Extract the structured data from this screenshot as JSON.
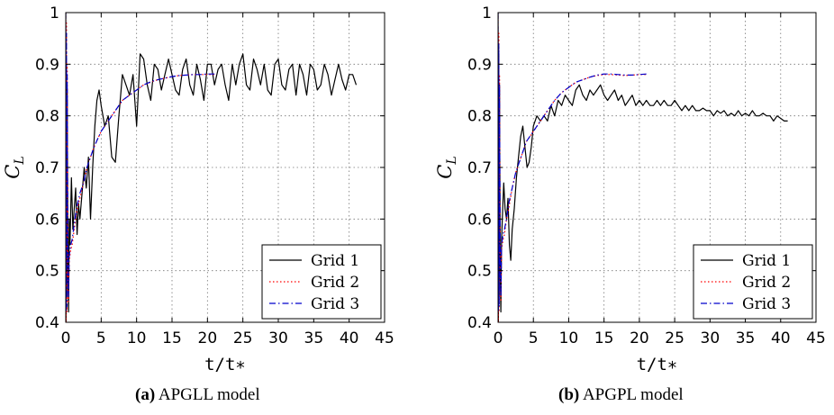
{
  "chart_data": [
    {
      "type": "line",
      "ylabel_main": "C",
      "ylabel_sub": "L",
      "xlabel": "t/t∗",
      "xlim": [
        0,
        45
      ],
      "ylim": [
        0.4,
        1.0
      ],
      "xticks": [
        0,
        5,
        10,
        15,
        20,
        25,
        30,
        35,
        40,
        45
      ],
      "yticks": [
        0.4,
        0.5,
        0.6,
        0.7,
        0.8,
        0.9,
        1.0
      ],
      "ytick_labels": [
        "0.4",
        "0.5",
        "0.6",
        "0.7",
        "0.8",
        "0.9",
        "1"
      ],
      "grid": true,
      "legend": "bottom-right",
      "caption_tag": "(a)",
      "caption_text": "APGLL model",
      "series": [
        {
          "name": "Grid 1",
          "color": "#000000",
          "style": "solid",
          "x": [
            0,
            0.05,
            0.1,
            0.15,
            0.2,
            0.3,
            0.4,
            0.5,
            0.6,
            0.8,
            1.0,
            1.2,
            1.4,
            1.6,
            1.8,
            2.0,
            2.3,
            2.6,
            2.9,
            3.2,
            3.5,
            3.8,
            4.1,
            4.4,
            4.7,
            5.0,
            5.5,
            6.0,
            6.5,
            7.0,
            7.5,
            8.0,
            8.5,
            9.0,
            9.5,
            10.0,
            10.5,
            11.0,
            11.5,
            12.0,
            12.5,
            13.0,
            13.5,
            14.0,
            14.5,
            15.0,
            15.5,
            16.0,
            16.5,
            17.0,
            17.5,
            18.0,
            18.5,
            19.0,
            19.5,
            20.0,
            20.5,
            21.0,
            21.5,
            22.0,
            22.5,
            23.0,
            23.5,
            24.0,
            24.5,
            25.0,
            25.5,
            26.0,
            26.5,
            27.0,
            27.5,
            28.0,
            28.5,
            29.0,
            29.5,
            30.0,
            30.5,
            31.0,
            31.5,
            32.0,
            32.5,
            33.0,
            33.5,
            34.0,
            34.5,
            35.0,
            35.5,
            36.0,
            36.5,
            37.0,
            37.5,
            38.0,
            38.5,
            39.0,
            39.5,
            40.0,
            40.5,
            41.0
          ],
          "y": [
            1.0,
            0.4,
            0.9,
            0.45,
            0.85,
            0.5,
            0.42,
            0.6,
            0.55,
            0.68,
            0.58,
            0.62,
            0.66,
            0.57,
            0.63,
            0.6,
            0.65,
            0.7,
            0.66,
            0.72,
            0.6,
            0.7,
            0.78,
            0.83,
            0.85,
            0.82,
            0.78,
            0.8,
            0.72,
            0.71,
            0.8,
            0.88,
            0.86,
            0.84,
            0.88,
            0.78,
            0.92,
            0.91,
            0.86,
            0.83,
            0.9,
            0.89,
            0.85,
            0.88,
            0.91,
            0.88,
            0.85,
            0.84,
            0.89,
            0.91,
            0.86,
            0.84,
            0.9,
            0.87,
            0.83,
            0.9,
            0.9,
            0.86,
            0.89,
            0.9,
            0.86,
            0.83,
            0.9,
            0.86,
            0.9,
            0.92,
            0.86,
            0.85,
            0.91,
            0.89,
            0.86,
            0.9,
            0.85,
            0.84,
            0.9,
            0.91,
            0.86,
            0.85,
            0.89,
            0.9,
            0.84,
            0.9,
            0.88,
            0.84,
            0.9,
            0.89,
            0.85,
            0.86,
            0.9,
            0.88,
            0.84,
            0.87,
            0.9,
            0.87,
            0.85,
            0.88,
            0.88,
            0.86
          ]
        },
        {
          "name": "Grid 2",
          "color": "#ff0000",
          "style": "dotted",
          "x": [
            0,
            0.05,
            0.1,
            0.15,
            0.2,
            0.3,
            0.4,
            0.5,
            0.7,
            0.9,
            1.2,
            1.5,
            2.0,
            2.5,
            3.0,
            3.5,
            4.0,
            5.0,
            6.0,
            7.0,
            8.0,
            9.0,
            10.0,
            11.0,
            12.0,
            13.0,
            14.0,
            15.0,
            16.0,
            17.0,
            18.0,
            19.0,
            20.0,
            21.0
          ],
          "y": [
            1.0,
            0.4,
            0.98,
            0.42,
            0.9,
            0.5,
            0.44,
            0.52,
            0.54,
            0.55,
            0.58,
            0.61,
            0.64,
            0.67,
            0.7,
            0.72,
            0.74,
            0.77,
            0.79,
            0.81,
            0.83,
            0.84,
            0.85,
            0.86,
            0.865,
            0.87,
            0.873,
            0.876,
            0.878,
            0.879,
            0.88,
            0.88,
            0.88,
            0.88
          ]
        },
        {
          "name": "Grid 3",
          "color": "#0000cc",
          "style": "dashdot",
          "x": [
            0,
            0.05,
            0.1,
            0.15,
            0.2,
            0.3,
            0.4,
            0.5,
            0.7,
            0.9,
            1.2,
            1.5,
            2.0,
            2.5,
            3.0,
            3.5,
            4.0,
            5.0,
            6.0,
            7.0,
            8.0,
            9.0,
            10.0,
            11.0,
            12.0,
            13.0,
            14.0,
            15.0,
            16.0,
            17.0,
            18.0,
            19.0,
            20.0,
            21.0
          ],
          "y": [
            1.0,
            0.42,
            0.96,
            0.43,
            0.88,
            0.52,
            0.45,
            0.53,
            0.55,
            0.56,
            0.59,
            0.62,
            0.65,
            0.67,
            0.7,
            0.72,
            0.74,
            0.77,
            0.79,
            0.81,
            0.83,
            0.84,
            0.85,
            0.86,
            0.866,
            0.87,
            0.873,
            0.876,
            0.878,
            0.879,
            0.88,
            0.88,
            0.881,
            0.881
          ]
        }
      ]
    },
    {
      "type": "line",
      "ylabel_main": "C",
      "ylabel_sub": "L",
      "xlabel": "t/t∗",
      "xlim": [
        0,
        45
      ],
      "ylim": [
        0.4,
        1.0
      ],
      "xticks": [
        0,
        5,
        10,
        15,
        20,
        25,
        30,
        35,
        40,
        45
      ],
      "yticks": [
        0.4,
        0.5,
        0.6,
        0.7,
        0.8,
        0.9,
        1.0
      ],
      "ytick_labels": [
        "0.4",
        "0.5",
        "0.6",
        "0.7",
        "0.8",
        "0.9",
        "1"
      ],
      "grid": true,
      "legend": "bottom-right",
      "caption_tag": "(b)",
      "caption_text": "APGPL model",
      "series": [
        {
          "name": "Grid 1",
          "color": "#000000",
          "style": "solid",
          "x": [
            0,
            0.05,
            0.1,
            0.15,
            0.2,
            0.3,
            0.4,
            0.5,
            0.6,
            0.8,
            1.0,
            1.2,
            1.4,
            1.6,
            1.8,
            2.0,
            2.3,
            2.6,
            2.9,
            3.2,
            3.5,
            3.8,
            4.1,
            4.4,
            4.7,
            5.0,
            5.5,
            6.0,
            6.5,
            7.0,
            7.5,
            8.0,
            8.5,
            9.0,
            9.5,
            10.0,
            10.5,
            11.0,
            11.5,
            12.0,
            12.5,
            13.0,
            13.5,
            14.0,
            14.5,
            15.0,
            15.5,
            16.0,
            16.5,
            17.0,
            17.5,
            18.0,
            18.5,
            19.0,
            19.5,
            20.0,
            20.5,
            21.0,
            21.5,
            22.0,
            22.5,
            23.0,
            23.5,
            24.0,
            24.5,
            25.0,
            25.5,
            26.0,
            26.5,
            27.0,
            27.5,
            28.0,
            28.5,
            29.0,
            29.5,
            30.0,
            30.5,
            31.0,
            31.5,
            32.0,
            32.5,
            33.0,
            33.5,
            34.0,
            34.5,
            35.0,
            35.5,
            36.0,
            36.5,
            37.0,
            37.5,
            38.0,
            38.5,
            39.0,
            39.5,
            40.0,
            40.5,
            41.0
          ],
          "y": [
            1.0,
            0.4,
            0.92,
            0.45,
            0.86,
            0.5,
            0.42,
            0.56,
            0.6,
            0.67,
            0.62,
            0.6,
            0.64,
            0.55,
            0.52,
            0.58,
            0.62,
            0.68,
            0.72,
            0.76,
            0.78,
            0.74,
            0.7,
            0.71,
            0.74,
            0.78,
            0.8,
            0.79,
            0.8,
            0.79,
            0.82,
            0.8,
            0.83,
            0.82,
            0.84,
            0.83,
            0.82,
            0.85,
            0.86,
            0.84,
            0.83,
            0.85,
            0.84,
            0.85,
            0.86,
            0.84,
            0.83,
            0.84,
            0.85,
            0.83,
            0.84,
            0.82,
            0.83,
            0.84,
            0.82,
            0.83,
            0.82,
            0.83,
            0.82,
            0.82,
            0.83,
            0.82,
            0.83,
            0.82,
            0.82,
            0.83,
            0.82,
            0.81,
            0.82,
            0.81,
            0.82,
            0.81,
            0.81,
            0.815,
            0.81,
            0.81,
            0.8,
            0.81,
            0.805,
            0.81,
            0.8,
            0.805,
            0.8,
            0.81,
            0.8,
            0.805,
            0.8,
            0.81,
            0.8,
            0.8,
            0.805,
            0.8,
            0.8,
            0.79,
            0.8,
            0.795,
            0.79,
            0.79
          ]
        },
        {
          "name": "Grid 2",
          "color": "#ff0000",
          "style": "dotted",
          "x": [
            0,
            0.05,
            0.1,
            0.15,
            0.2,
            0.3,
            0.4,
            0.5,
            0.7,
            0.9,
            1.2,
            1.5,
            2.0,
            2.5,
            3.0,
            3.5,
            4.0,
            5.0,
            6.0,
            7.0,
            8.0,
            9.0,
            10.0,
            11.0,
            12.0,
            13.0,
            14.0,
            15.0,
            16.0,
            17.0,
            18.0,
            19.0,
            20.0,
            21.0
          ],
          "y": [
            1.0,
            0.4,
            0.96,
            0.42,
            0.88,
            0.5,
            0.44,
            0.54,
            0.56,
            0.57,
            0.6,
            0.62,
            0.66,
            0.69,
            0.71,
            0.73,
            0.75,
            0.77,
            0.79,
            0.81,
            0.83,
            0.845,
            0.855,
            0.865,
            0.87,
            0.875,
            0.878,
            0.88,
            0.88,
            0.879,
            0.878,
            0.879,
            0.88,
            0.88
          ]
        },
        {
          "name": "Grid 3",
          "color": "#0000cc",
          "style": "dashdot",
          "x": [
            0,
            0.05,
            0.1,
            0.15,
            0.2,
            0.3,
            0.4,
            0.5,
            0.7,
            0.9,
            1.2,
            1.5,
            2.0,
            2.5,
            3.0,
            3.5,
            4.0,
            5.0,
            6.0,
            7.0,
            8.0,
            9.0,
            10.0,
            11.0,
            12.0,
            13.0,
            14.0,
            15.0,
            16.0,
            17.0,
            18.0,
            19.0,
            20.0,
            21.0
          ],
          "y": [
            1.0,
            0.42,
            0.94,
            0.43,
            0.86,
            0.52,
            0.45,
            0.55,
            0.57,
            0.58,
            0.6,
            0.63,
            0.66,
            0.69,
            0.71,
            0.73,
            0.75,
            0.77,
            0.79,
            0.81,
            0.83,
            0.845,
            0.855,
            0.865,
            0.87,
            0.875,
            0.879,
            0.881,
            0.881,
            0.88,
            0.879,
            0.879,
            0.88,
            0.881
          ]
        }
      ]
    }
  ]
}
